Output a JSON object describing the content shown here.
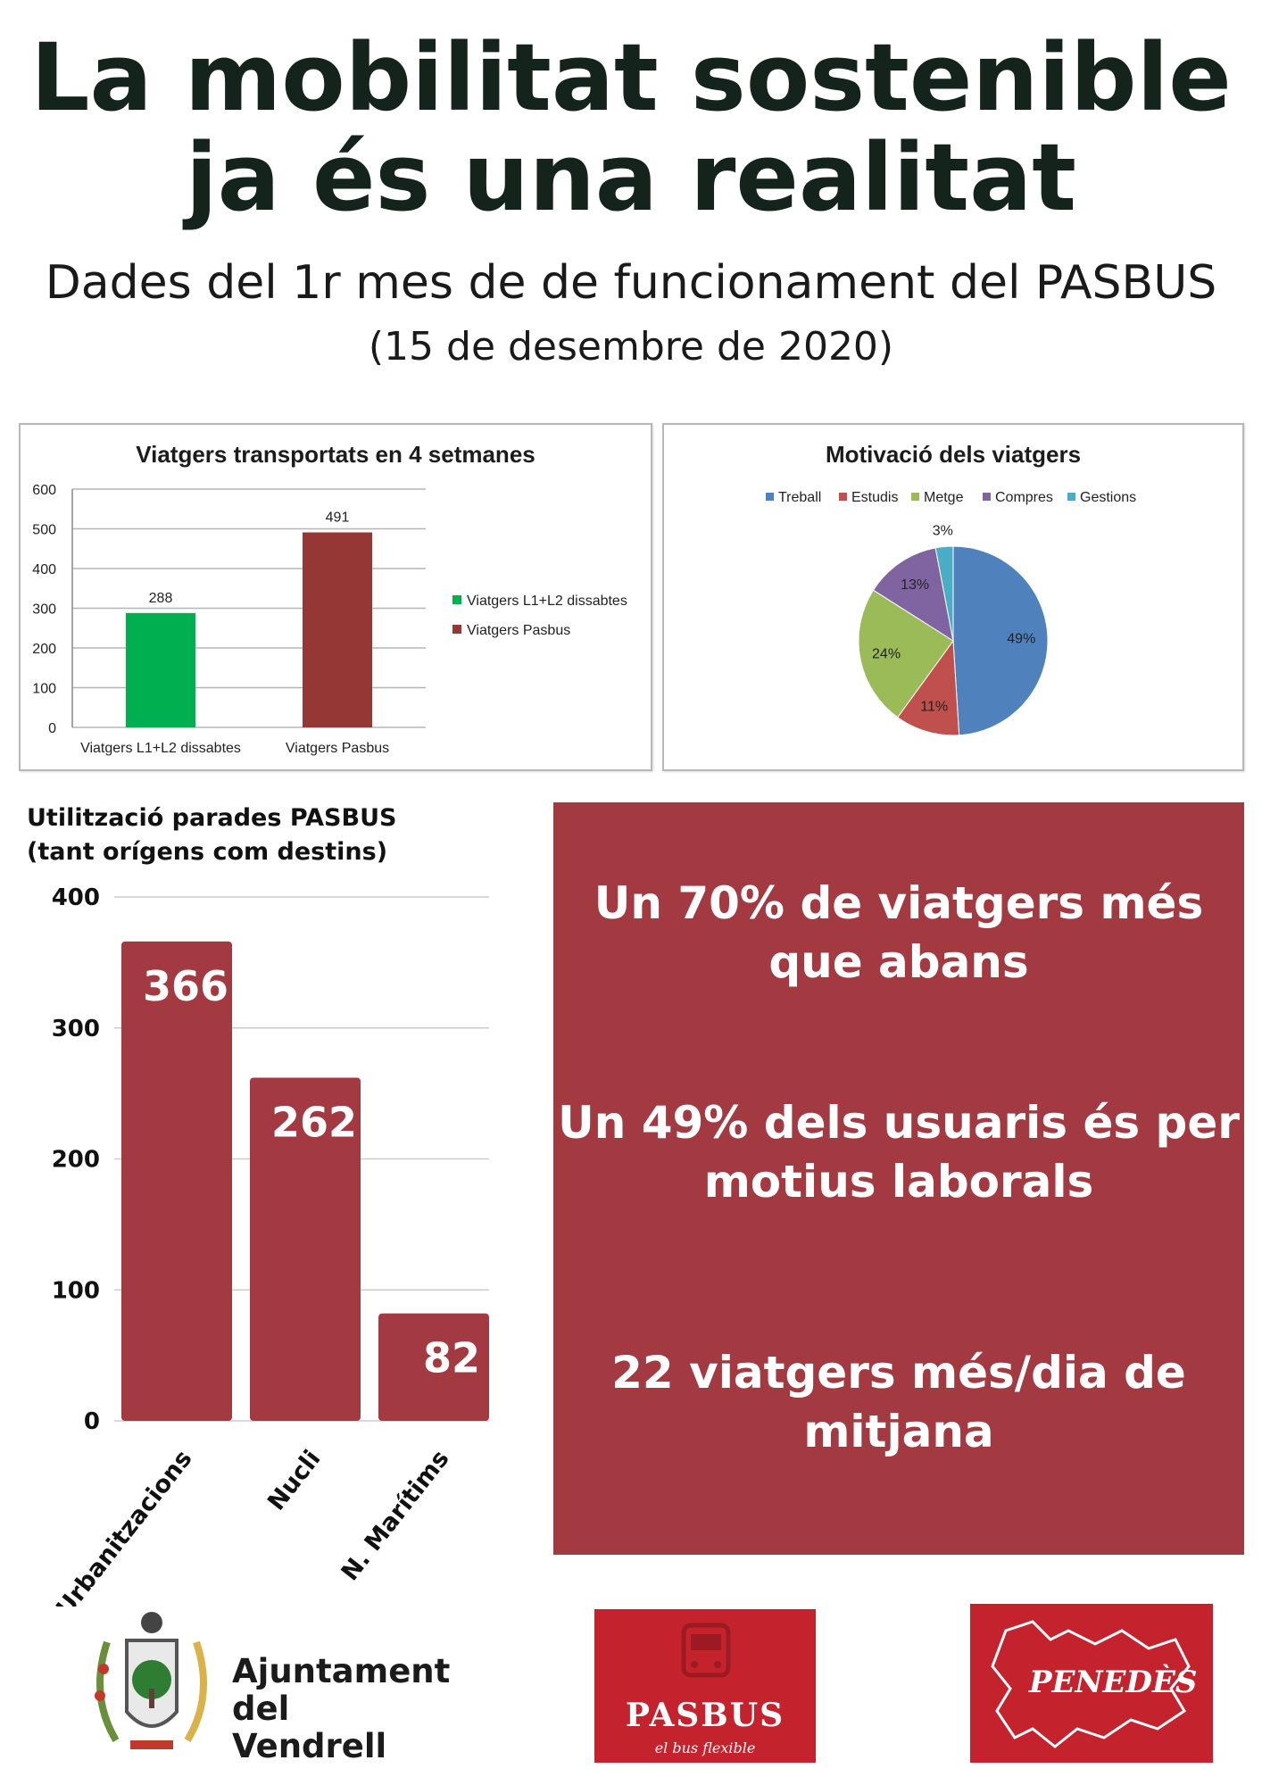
{
  "header": {
    "title_line1": "La mobilitat sostenible",
    "title_line2": "ja és una realitat",
    "subtitle_line1": "Dades del 1r mes de de funcionament del PASBUS",
    "subtitle_line2": "(15 de desembre de 2020)"
  },
  "chart_data": [
    {
      "type": "bar",
      "title": "Viatgers transportats en 4 setmanes",
      "categories": [
        "Viatgers L1+L2 dissabtes",
        "Viatgers Pasbus"
      ],
      "values": [
        288,
        491
      ],
      "colors": [
        "#00b050",
        "#953735"
      ],
      "legend": [
        "Viatgers L1+L2 dissabtes",
        "Viatgers Pasbus"
      ],
      "legend_position": "right",
      "ylim": [
        0,
        600
      ],
      "yticks": [
        0,
        100,
        200,
        300,
        400,
        500,
        600
      ],
      "grid": true
    },
    {
      "type": "pie",
      "title": "Motivació dels viatgers",
      "labels": [
        "Treball",
        "Estudis",
        "Metge",
        "Compres",
        "Gestions"
      ],
      "values": [
        49,
        11,
        24,
        13,
        3
      ],
      "value_labels": [
        "49%",
        "11%",
        "24%",
        "13%",
        "3%"
      ],
      "colors": [
        "#4f81bd",
        "#c0504d",
        "#9bbb59",
        "#8064a2",
        "#4bacc6"
      ],
      "legend_position": "top"
    },
    {
      "type": "bar",
      "title": "Utilització parades PASBUS",
      "title_line2": "(tant orígens com destins)",
      "categories": [
        "Urbanitzacions",
        "Nucli",
        "N. Marítims"
      ],
      "values": [
        366,
        262,
        82
      ],
      "color": "#a33a42",
      "ylim": [
        0,
        400
      ],
      "yticks": [
        0,
        100,
        200,
        300,
        400
      ],
      "grid": true
    }
  ],
  "facts": {
    "fact1": "Un 70% de viatgers més que abans",
    "fact2": "Un 49% dels usuaris és per motius laborals",
    "fact3": "22 viatgers més/dia de mitjana"
  },
  "logos": {
    "vendrell_line1": "Ajuntament",
    "vendrell_line2": "del Vendrell",
    "pasbus_name": "PASBUS",
    "pasbus_tagline": "el bus flexible",
    "penedes_name": "PENEDÈS"
  },
  "colors": {
    "accent": "#a33a42",
    "title_text": "#14231c",
    "logo_red": "#c4232d"
  }
}
